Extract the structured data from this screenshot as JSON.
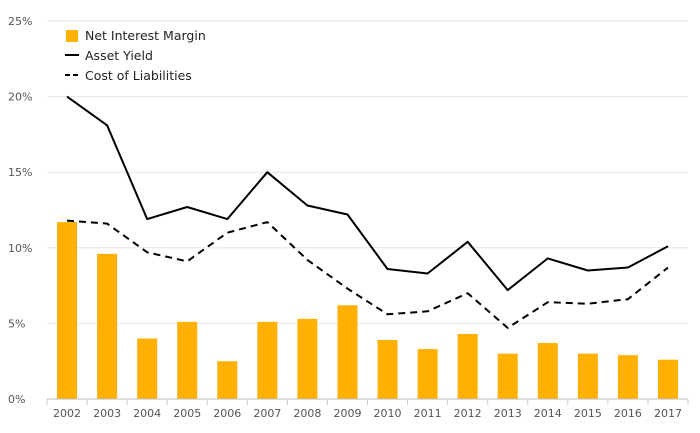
{
  "chart_data": {
    "type": "bar",
    "categories": [
      "2002",
      "2003",
      "2004",
      "2005",
      "2006",
      "2007",
      "2008",
      "2009",
      "2010",
      "2011",
      "2012",
      "2013",
      "2014",
      "2015",
      "2016",
      "2017"
    ],
    "series": [
      {
        "name": "Net Interest Margin",
        "kind": "bar",
        "color": "#FFB000",
        "values": [
          11.7,
          9.6,
          4.0,
          5.1,
          2.5,
          5.1,
          5.3,
          6.2,
          3.9,
          3.3,
          4.3,
          3.0,
          3.7,
          3.0,
          2.9,
          2.6
        ]
      },
      {
        "name": "Asset Yield",
        "kind": "line",
        "dash": "solid",
        "color": "#000000",
        "values": [
          20.0,
          18.1,
          11.9,
          12.7,
          11.9,
          15.0,
          12.8,
          12.2,
          8.6,
          8.3,
          10.4,
          7.2,
          9.3,
          8.5,
          8.7,
          10.1
        ]
      },
      {
        "name": "Cost of Liabilities",
        "kind": "line",
        "dash": "dashed",
        "color": "#000000",
        "values": [
          11.8,
          11.6,
          9.7,
          9.1,
          11.0,
          11.7,
          9.2,
          7.3,
          5.6,
          5.8,
          7.0,
          4.7,
          6.4,
          6.3,
          6.6,
          8.7
        ]
      }
    ],
    "y_ticks": [
      "0%",
      "5%",
      "10%",
      "15%",
      "20%",
      "25%"
    ],
    "ylim": [
      0,
      25
    ],
    "title": "",
    "xlabel": "",
    "ylabel": "",
    "grid": true,
    "legend_position": "top-left"
  }
}
